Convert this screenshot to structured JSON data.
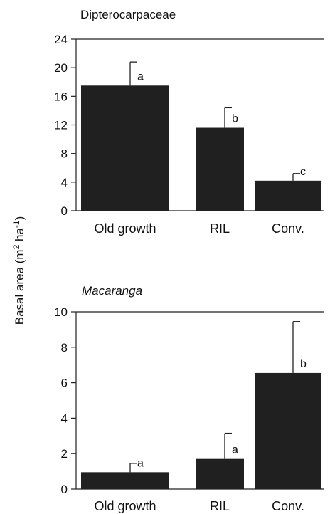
{
  "figure": {
    "ylabel_text": "Basal area (m",
    "ylabel_sup1": "2",
    "ylabel_mid": " ha",
    "ylabel_sup2": "-1",
    "ylabel_end": ")"
  },
  "chart_data": [
    {
      "type": "bar",
      "title": "Dipterocarpaceae",
      "title_italic": false,
      "categories": [
        "Old growth",
        "RIL",
        "Conv."
      ],
      "values": [
        17.5,
        11.6,
        4.2
      ],
      "errors": [
        3.3,
        2.8,
        1.0
      ],
      "significance": [
        "a",
        "b",
        "c"
      ],
      "ylim": [
        0,
        24
      ],
      "yticks": [
        0,
        4,
        8,
        12,
        16,
        20,
        24
      ],
      "bar_color": "#202020"
    },
    {
      "type": "bar",
      "title": "Macaranga",
      "title_italic": true,
      "categories": [
        "Old growth",
        "RIL",
        "Conv."
      ],
      "values": [
        0.95,
        1.7,
        6.55
      ],
      "errors": [
        0.5,
        1.45,
        2.9
      ],
      "significance": [
        "a",
        "a",
        "b"
      ],
      "ylim": [
        0,
        10
      ],
      "yticks": [
        0,
        2,
        4,
        6,
        8,
        10
      ],
      "bar_color": "#202020"
    }
  ]
}
